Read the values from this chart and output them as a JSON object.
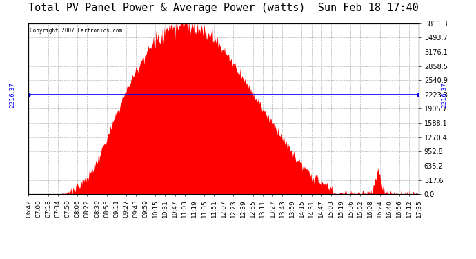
{
  "title": "Total PV Panel Power & Average Power (watts)  Sun Feb 18 17:40",
  "copyright": "Copyright 2007 Cartronics.com",
  "avg_power": 2216.37,
  "avg_line_y": 2216.37,
  "ymax": 3811.3,
  "yticks": [
    0.0,
    317.6,
    635.2,
    952.8,
    1270.4,
    1588.1,
    1905.7,
    2223.3,
    2540.9,
    2858.5,
    3176.1,
    3493.7,
    3811.3
  ],
  "bar_color": "#FF0000",
  "avg_line_color": "#0000FF",
  "background_color": "#FFFFFF",
  "plot_bg_color": "#FFFFFF",
  "grid_color": "#999999",
  "title_fontsize": 11,
  "tick_fontsize": 7,
  "x_labels": [
    "06:42",
    "07:00",
    "07:18",
    "07:34",
    "07:50",
    "08:06",
    "08:22",
    "08:39",
    "08:55",
    "09:11",
    "09:27",
    "09:43",
    "09:59",
    "10:15",
    "10:31",
    "10:47",
    "11:03",
    "11:19",
    "11:35",
    "11:51",
    "12:07",
    "12:23",
    "12:39",
    "12:55",
    "13:11",
    "13:27",
    "13:43",
    "13:59",
    "14:15",
    "14:31",
    "14:47",
    "15:03",
    "15:19",
    "15:36",
    "15:52",
    "16:08",
    "16:24",
    "16:40",
    "16:56",
    "17:12",
    "17:35"
  ]
}
